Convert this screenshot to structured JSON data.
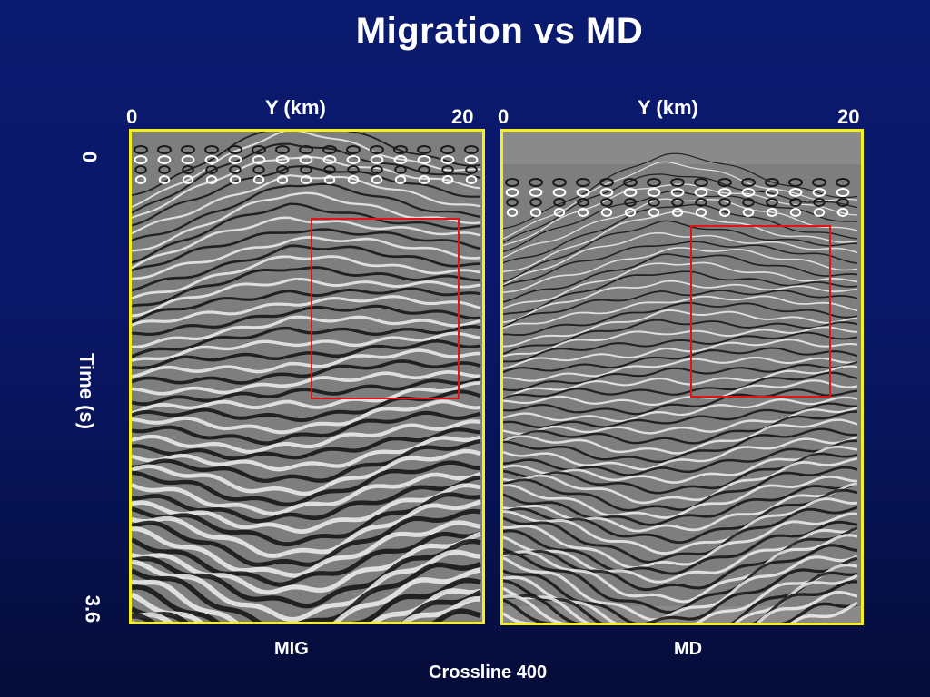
{
  "title": "Migration vs MD",
  "y_axis_label": "Time  (s)",
  "y_ticks": {
    "top": "0",
    "bottom": "3.6"
  },
  "footer": "Crossline 400",
  "panels": [
    {
      "x_axis_label": "Y (km)",
      "x_ticks": {
        "left": "0",
        "right": "20"
      },
      "caption": "MIG"
    },
    {
      "x_axis_label": "Y (km)",
      "x_ticks": {
        "left": "0",
        "right": "20"
      },
      "caption": "MD"
    }
  ],
  "colors": {
    "background": "#0a1a6e",
    "panel_border": "#f5ef1a",
    "highlight_box": "#e21414",
    "text": "#ffffff"
  }
}
